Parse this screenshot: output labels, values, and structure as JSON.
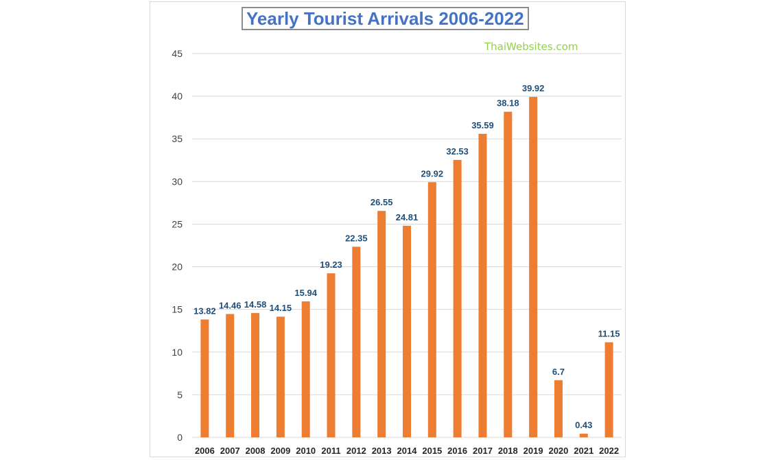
{
  "watermark": "ThaiWebsites.com",
  "colors": {
    "bar": "#ed7d31",
    "title": "#4472c4",
    "data_label": "#1f4e79",
    "grid": "#d9d9d9",
    "watermark": "#92d050"
  },
  "chart_data": {
    "type": "bar",
    "title": "Yearly Tourist Arrivals 2006-2022",
    "xlabel": "",
    "ylabel": "",
    "ylim": [
      0,
      45
    ],
    "yticks": [
      0,
      5,
      10,
      15,
      20,
      25,
      30,
      35,
      40,
      45
    ],
    "grid": true,
    "legend": "none",
    "categories": [
      "2006",
      "2007",
      "2008",
      "2009",
      "2010",
      "2011",
      "2012",
      "2013",
      "2014",
      "2015",
      "2016",
      "2017",
      "2018",
      "2019",
      "2020",
      "2021",
      "2022"
    ],
    "values": [
      13.82,
      14.46,
      14.58,
      14.15,
      15.94,
      19.23,
      22.35,
      26.55,
      24.81,
      29.92,
      32.53,
      35.59,
      38.18,
      39.92,
      6.7,
      0.43,
      11.15
    ],
    "data_labels": [
      "13.82",
      "14.46",
      "14.58",
      "14.15",
      "15.94",
      "19.23",
      "22.35",
      "26.55",
      "24.81",
      "29.92",
      "32.53",
      "35.59",
      "38.18",
      "39.92",
      "6.7",
      "0.43",
      "11.15"
    ]
  }
}
